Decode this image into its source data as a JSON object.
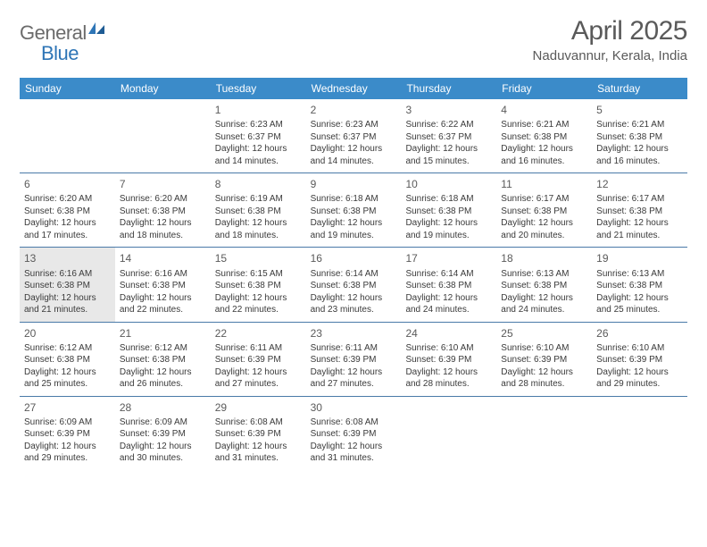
{
  "brand": {
    "general": "General",
    "blue": "Blue"
  },
  "colors": {
    "header_bg": "#3b8bc9",
    "header_text": "#ffffff",
    "border": "#4a7aa8",
    "highlight_bg": "#e8e8e8",
    "body_text": "#3a3a3a",
    "title_text": "#5a5a5a",
    "logo_gray": "#6b6b6b",
    "logo_blue": "#2e75b6",
    "page_bg": "#ffffff"
  },
  "title": "April 2025",
  "location": "Naduvannur, Kerala, India",
  "weekdays": [
    "Sunday",
    "Monday",
    "Tuesday",
    "Wednesday",
    "Thursday",
    "Friday",
    "Saturday"
  ],
  "highlight_days": [
    13
  ],
  "weeks": [
    [
      {
        "day": null
      },
      {
        "day": null
      },
      {
        "day": 1,
        "sunrise": "6:23 AM",
        "sunset": "6:37 PM",
        "daylight": "12 hours and 14 minutes."
      },
      {
        "day": 2,
        "sunrise": "6:23 AM",
        "sunset": "6:37 PM",
        "daylight": "12 hours and 14 minutes."
      },
      {
        "day": 3,
        "sunrise": "6:22 AM",
        "sunset": "6:37 PM",
        "daylight": "12 hours and 15 minutes."
      },
      {
        "day": 4,
        "sunrise": "6:21 AM",
        "sunset": "6:38 PM",
        "daylight": "12 hours and 16 minutes."
      },
      {
        "day": 5,
        "sunrise": "6:21 AM",
        "sunset": "6:38 PM",
        "daylight": "12 hours and 16 minutes."
      }
    ],
    [
      {
        "day": 6,
        "sunrise": "6:20 AM",
        "sunset": "6:38 PM",
        "daylight": "12 hours and 17 minutes."
      },
      {
        "day": 7,
        "sunrise": "6:20 AM",
        "sunset": "6:38 PM",
        "daylight": "12 hours and 18 minutes."
      },
      {
        "day": 8,
        "sunrise": "6:19 AM",
        "sunset": "6:38 PM",
        "daylight": "12 hours and 18 minutes."
      },
      {
        "day": 9,
        "sunrise": "6:18 AM",
        "sunset": "6:38 PM",
        "daylight": "12 hours and 19 minutes."
      },
      {
        "day": 10,
        "sunrise": "6:18 AM",
        "sunset": "6:38 PM",
        "daylight": "12 hours and 19 minutes."
      },
      {
        "day": 11,
        "sunrise": "6:17 AM",
        "sunset": "6:38 PM",
        "daylight": "12 hours and 20 minutes."
      },
      {
        "day": 12,
        "sunrise": "6:17 AM",
        "sunset": "6:38 PM",
        "daylight": "12 hours and 21 minutes."
      }
    ],
    [
      {
        "day": 13,
        "sunrise": "6:16 AM",
        "sunset": "6:38 PM",
        "daylight": "12 hours and 21 minutes."
      },
      {
        "day": 14,
        "sunrise": "6:16 AM",
        "sunset": "6:38 PM",
        "daylight": "12 hours and 22 minutes."
      },
      {
        "day": 15,
        "sunrise": "6:15 AM",
        "sunset": "6:38 PM",
        "daylight": "12 hours and 22 minutes."
      },
      {
        "day": 16,
        "sunrise": "6:14 AM",
        "sunset": "6:38 PM",
        "daylight": "12 hours and 23 minutes."
      },
      {
        "day": 17,
        "sunrise": "6:14 AM",
        "sunset": "6:38 PM",
        "daylight": "12 hours and 24 minutes."
      },
      {
        "day": 18,
        "sunrise": "6:13 AM",
        "sunset": "6:38 PM",
        "daylight": "12 hours and 24 minutes."
      },
      {
        "day": 19,
        "sunrise": "6:13 AM",
        "sunset": "6:38 PM",
        "daylight": "12 hours and 25 minutes."
      }
    ],
    [
      {
        "day": 20,
        "sunrise": "6:12 AM",
        "sunset": "6:38 PM",
        "daylight": "12 hours and 25 minutes."
      },
      {
        "day": 21,
        "sunrise": "6:12 AM",
        "sunset": "6:38 PM",
        "daylight": "12 hours and 26 minutes."
      },
      {
        "day": 22,
        "sunrise": "6:11 AM",
        "sunset": "6:39 PM",
        "daylight": "12 hours and 27 minutes."
      },
      {
        "day": 23,
        "sunrise": "6:11 AM",
        "sunset": "6:39 PM",
        "daylight": "12 hours and 27 minutes."
      },
      {
        "day": 24,
        "sunrise": "6:10 AM",
        "sunset": "6:39 PM",
        "daylight": "12 hours and 28 minutes."
      },
      {
        "day": 25,
        "sunrise": "6:10 AM",
        "sunset": "6:39 PM",
        "daylight": "12 hours and 28 minutes."
      },
      {
        "day": 26,
        "sunrise": "6:10 AM",
        "sunset": "6:39 PM",
        "daylight": "12 hours and 29 minutes."
      }
    ],
    [
      {
        "day": 27,
        "sunrise": "6:09 AM",
        "sunset": "6:39 PM",
        "daylight": "12 hours and 29 minutes."
      },
      {
        "day": 28,
        "sunrise": "6:09 AM",
        "sunset": "6:39 PM",
        "daylight": "12 hours and 30 minutes."
      },
      {
        "day": 29,
        "sunrise": "6:08 AM",
        "sunset": "6:39 PM",
        "daylight": "12 hours and 31 minutes."
      },
      {
        "day": 30,
        "sunrise": "6:08 AM",
        "sunset": "6:39 PM",
        "daylight": "12 hours and 31 minutes."
      },
      {
        "day": null
      },
      {
        "day": null
      },
      {
        "day": null
      }
    ]
  ],
  "labels": {
    "sunrise": "Sunrise:",
    "sunset": "Sunset:",
    "daylight": "Daylight:"
  }
}
